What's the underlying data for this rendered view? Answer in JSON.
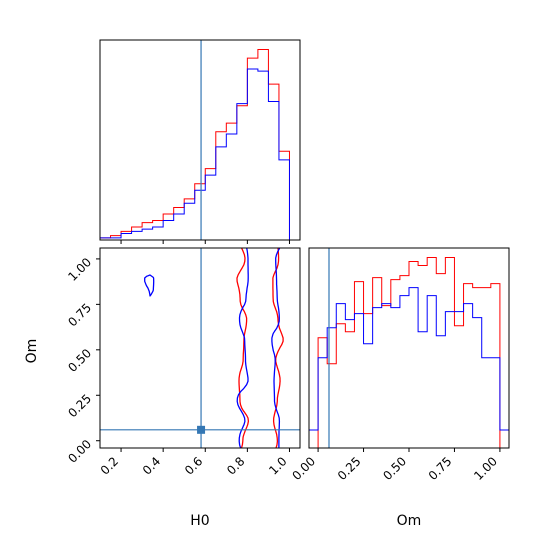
{
  "chart_data": {
    "type": "corner",
    "truths": {
      "H0": 0.58,
      "Om": 0.06
    },
    "truth_color": "#3477b4",
    "series": [
      {
        "color": "#ff0000"
      },
      {
        "color": "#0000ff"
      }
    ],
    "panels": [
      {
        "id": "hist_H0",
        "type": "histogram",
        "xlim": [
          0.1,
          1.05
        ],
        "bin_edges": [
          0.1,
          0.15,
          0.2,
          0.25,
          0.3,
          0.35,
          0.4,
          0.45,
          0.5,
          0.55,
          0.6,
          0.65,
          0.7,
          0.75,
          0.8,
          0.85,
          0.9,
          0.95,
          1.0
        ],
        "counts": [
          [
            1,
            2,
            4,
            6,
            8,
            9,
            12,
            15,
            19,
            26,
            33,
            50,
            54,
            62,
            84,
            88,
            72,
            41
          ],
          [
            1,
            1,
            3,
            4,
            5,
            6,
            9,
            12,
            17,
            23,
            30,
            43,
            49,
            63,
            79,
            78,
            64,
            37
          ]
        ]
      },
      {
        "id": "contour_H0_Om",
        "type": "contour",
        "xlabel": "H0",
        "ylabel": "Om",
        "xlim": [
          0.1,
          1.05
        ],
        "ylim": [
          -0.04,
          1.06
        ],
        "xticks": [
          "0.2",
          "0.4",
          "0.6",
          "0.8",
          "1.0"
        ],
        "yticks": [
          "0.00",
          "0.25",
          "0.50",
          "0.75",
          "1.00"
        ],
        "xtick_values": [
          0.2,
          0.4,
          0.6,
          0.8,
          1.0
        ],
        "ytick_values": [
          0.0,
          0.25,
          0.5,
          0.75,
          1.0
        ],
        "truth_marker": [
          0.58,
          0.06
        ]
      },
      {
        "id": "hist_Om",
        "type": "histogram",
        "xlabel": "Om",
        "xlim": [
          -0.05,
          1.05
        ],
        "xticks": [
          "0.00",
          "0.25",
          "0.50",
          "0.75",
          "1.00"
        ],
        "xtick_values": [
          0.0,
          0.25,
          0.5,
          0.75,
          1.0
        ],
        "bin_edges": [
          -0.05,
          0.0,
          0.05,
          0.1,
          0.15,
          0.2,
          0.25,
          0.3,
          0.35,
          0.4,
          0.45,
          0.5,
          0.55,
          0.6,
          0.65,
          0.7,
          0.75,
          0.8,
          0.85,
          0.9,
          0.95,
          1.0,
          1.05
        ],
        "counts": [
          [
            0,
            55,
            42,
            62,
            58,
            83,
            67,
            85,
            71,
            84,
            86,
            93,
            91,
            95,
            87,
            95,
            61,
            82,
            80,
            80,
            82,
            0
          ],
          [
            9,
            45,
            60,
            72,
            64,
            67,
            52,
            70,
            72,
            70,
            76,
            80,
            58,
            76,
            56,
            68,
            68,
            72,
            65,
            45,
            45,
            9
          ]
        ]
      }
    ]
  }
}
